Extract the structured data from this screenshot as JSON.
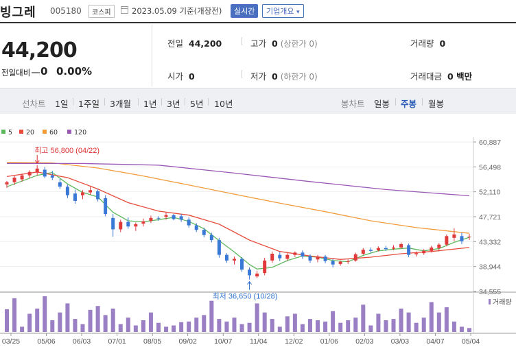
{
  "header": {
    "name": "빙그레",
    "code": "005180",
    "market": "코스피",
    "date": "2023.05.09 기준(개장전)",
    "live_btn": "실시간",
    "info_btn": "기업개요",
    "info_arrow": "▾"
  },
  "price": {
    "current": "44,200",
    "change_label": "전일대비",
    "change": "0",
    "change_pct": "0.00%"
  },
  "stats": {
    "prev_label": "전일",
    "prev": "44,200",
    "high_label": "고가",
    "high": "0",
    "high_limit": "(상한가 0)",
    "volume_label": "거래량",
    "volume": "0",
    "open_label": "시가",
    "open": "0",
    "low_label": "저가",
    "low": "0",
    "low_limit": "(하한가 0)",
    "amount_label": "거래대금",
    "amount": "0 백만"
  },
  "toolbar": {
    "line_label": "선차트",
    "periods": [
      "1일",
      "1주일",
      "3개월",
      "1년",
      "3년",
      "5년",
      "10년"
    ],
    "candle_label": "봉차트",
    "candle_types": [
      "일봉",
      "주봉",
      "월봉"
    ],
    "active_candle": "주봉"
  },
  "legend": [
    {
      "label": "5",
      "color": "#5cb85c"
    },
    {
      "label": "20",
      "color": "#e74c3c"
    },
    {
      "label": "60",
      "color": "#f39c3c"
    },
    {
      "label": "120",
      "color": "#9b59b6"
    }
  ],
  "colors": {
    "up": "#e03a3a",
    "down": "#3a78d6",
    "volume": "#9b7fc4"
  },
  "annotations": {
    "high": "최고 56,800 (04/22)",
    "low": "최저 36,650 (10/28)"
  },
  "volume_label": "거래량",
  "chart_data": {
    "type": "candlestick",
    "ylim": [
      34555,
      60887
    ],
    "y_ticks": [
      "60,887",
      "56,498",
      "52,110",
      "47,721",
      "43,332",
      "38,944",
      "34,555"
    ],
    "x_ticks": [
      "03/25",
      "05/06",
      "06/03",
      "07/01",
      "08/05",
      "09/02",
      "10/07",
      "11/04",
      "12/02",
      "01/06",
      "02/03",
      "03/03",
      "04/07",
      "05/04"
    ],
    "candles": [
      {
        "o": 53400,
        "h": 54000,
        "l": 52800,
        "c": 53800
      },
      {
        "o": 53800,
        "h": 54900,
        "l": 53300,
        "c": 54600
      },
      {
        "o": 54300,
        "h": 55300,
        "l": 53900,
        "c": 55000
      },
      {
        "o": 55000,
        "h": 55900,
        "l": 54500,
        "c": 55600
      },
      {
        "o": 55500,
        "h": 56800,
        "l": 55000,
        "c": 56200
      },
      {
        "o": 56000,
        "h": 56500,
        "l": 54500,
        "c": 54800
      },
      {
        "o": 55000,
        "h": 55800,
        "l": 54200,
        "c": 54600
      },
      {
        "o": 53800,
        "h": 54400,
        "l": 52600,
        "c": 53000
      },
      {
        "o": 53000,
        "h": 53400,
        "l": 51000,
        "c": 51500
      },
      {
        "o": 51800,
        "h": 52500,
        "l": 50000,
        "c": 50500
      },
      {
        "o": 51500,
        "h": 52400,
        "l": 50800,
        "c": 52000
      },
      {
        "o": 52000,
        "h": 53000,
        "l": 51600,
        "c": 52400
      },
      {
        "o": 52200,
        "h": 52600,
        "l": 50400,
        "c": 50800
      },
      {
        "o": 51000,
        "h": 51500,
        "l": 47800,
        "c": 48200
      },
      {
        "o": 47500,
        "h": 48200,
        "l": 44200,
        "c": 45500
      },
      {
        "o": 45500,
        "h": 47200,
        "l": 45000,
        "c": 46800
      },
      {
        "o": 46800,
        "h": 47600,
        "l": 45600,
        "c": 46000
      },
      {
        "o": 46000,
        "h": 46700,
        "l": 45200,
        "c": 46400
      },
      {
        "o": 46500,
        "h": 47400,
        "l": 46000,
        "c": 46900
      },
      {
        "o": 47000,
        "h": 47900,
        "l": 46600,
        "c": 47500
      },
      {
        "o": 47500,
        "h": 47800,
        "l": 47000,
        "c": 47400
      },
      {
        "o": 47700,
        "h": 48400,
        "l": 47200,
        "c": 48000
      },
      {
        "o": 48000,
        "h": 48200,
        "l": 47100,
        "c": 47300
      },
      {
        "o": 47800,
        "h": 48200,
        "l": 46800,
        "c": 47200
      },
      {
        "o": 47200,
        "h": 47600,
        "l": 45800,
        "c": 46200
      },
      {
        "o": 46200,
        "h": 46600,
        "l": 45000,
        "c": 45400
      },
      {
        "o": 45400,
        "h": 45800,
        "l": 44100,
        "c": 44500
      },
      {
        "o": 44500,
        "h": 44900,
        "l": 43200,
        "c": 43600
      },
      {
        "o": 43600,
        "h": 44000,
        "l": 40500,
        "c": 41000
      },
      {
        "o": 41000,
        "h": 41300,
        "l": 39600,
        "c": 40000
      },
      {
        "o": 40000,
        "h": 40700,
        "l": 39300,
        "c": 40300
      },
      {
        "o": 40300,
        "h": 40600,
        "l": 38000,
        "c": 38400
      },
      {
        "o": 38400,
        "h": 38800,
        "l": 36650,
        "c": 37400
      },
      {
        "o": 37200,
        "h": 38200,
        "l": 36900,
        "c": 37700
      },
      {
        "o": 37800,
        "h": 40500,
        "l": 37400,
        "c": 40000
      },
      {
        "o": 40000,
        "h": 41600,
        "l": 39600,
        "c": 41200
      },
      {
        "o": 41000,
        "h": 41500,
        "l": 39900,
        "c": 40400
      },
      {
        "o": 40300,
        "h": 41300,
        "l": 40000,
        "c": 41000
      },
      {
        "o": 41000,
        "h": 41600,
        "l": 40600,
        "c": 41400
      },
      {
        "o": 41400,
        "h": 41800,
        "l": 40300,
        "c": 40700
      },
      {
        "o": 40800,
        "h": 41100,
        "l": 39600,
        "c": 40000
      },
      {
        "o": 40200,
        "h": 41000,
        "l": 39700,
        "c": 40700
      },
      {
        "o": 40700,
        "h": 41000,
        "l": 39500,
        "c": 39900
      },
      {
        "o": 39900,
        "h": 40300,
        "l": 38800,
        "c": 39300
      },
      {
        "o": 39400,
        "h": 40000,
        "l": 39100,
        "c": 39800
      },
      {
        "o": 39800,
        "h": 40200,
        "l": 39400,
        "c": 39900
      },
      {
        "o": 40000,
        "h": 41400,
        "l": 39800,
        "c": 41100
      },
      {
        "o": 41200,
        "h": 42200,
        "l": 41000,
        "c": 41900
      },
      {
        "o": 41900,
        "h": 42300,
        "l": 41400,
        "c": 41700
      },
      {
        "o": 41800,
        "h": 42500,
        "l": 41600,
        "c": 42200
      },
      {
        "o": 42200,
        "h": 42600,
        "l": 41700,
        "c": 42000
      },
      {
        "o": 42100,
        "h": 42700,
        "l": 41800,
        "c": 42300
      },
      {
        "o": 42300,
        "h": 43200,
        "l": 42100,
        "c": 42900
      },
      {
        "o": 42700,
        "h": 43000,
        "l": 40600,
        "c": 41000
      },
      {
        "o": 41100,
        "h": 41600,
        "l": 40700,
        "c": 41300
      },
      {
        "o": 41300,
        "h": 42000,
        "l": 41000,
        "c": 41700
      },
      {
        "o": 41700,
        "h": 42600,
        "l": 41400,
        "c": 42300
      },
      {
        "o": 42200,
        "h": 43100,
        "l": 41600,
        "c": 42800
      },
      {
        "o": 42800,
        "h": 44600,
        "l": 42500,
        "c": 44300
      },
      {
        "o": 44000,
        "h": 45700,
        "l": 43400,
        "c": 44600
      },
      {
        "o": 44300,
        "h": 44900,
        "l": 42900,
        "c": 43400
      },
      {
        "o": 44200,
        "h": 44700,
        "l": 43600,
        "c": 44200
      }
    ],
    "ma": [
      {
        "name": "5",
        "points": [
          [
            0,
            53000
          ],
          [
            4,
            55000
          ],
          [
            6,
            55500
          ],
          [
            8,
            53500
          ],
          [
            10,
            52000
          ],
          [
            12,
            51200
          ],
          [
            14,
            48500
          ],
          [
            16,
            47000
          ],
          [
            18,
            46800
          ],
          [
            20,
            47200
          ],
          [
            22,
            47600
          ],
          [
            24,
            46900
          ],
          [
            26,
            45600
          ],
          [
            28,
            43500
          ],
          [
            30,
            41500
          ],
          [
            32,
            39300
          ],
          [
            33,
            38500
          ],
          [
            35,
            38800
          ],
          [
            37,
            40000
          ],
          [
            39,
            40800
          ],
          [
            41,
            40600
          ],
          [
            43,
            40000
          ],
          [
            45,
            39800
          ],
          [
            47,
            40900
          ],
          [
            49,
            41700
          ],
          [
            51,
            42000
          ],
          [
            53,
            42200
          ],
          [
            55,
            41700
          ],
          [
            57,
            42100
          ],
          [
            59,
            43200
          ],
          [
            61,
            44100
          ]
        ]
      },
      {
        "name": "20",
        "points": [
          [
            0,
            54800
          ],
          [
            4,
            55600
          ],
          [
            8,
            54600
          ],
          [
            12,
            52600
          ],
          [
            16,
            50200
          ],
          [
            20,
            48700
          ],
          [
            24,
            48000
          ],
          [
            28,
            46400
          ],
          [
            32,
            43600
          ],
          [
            36,
            41600
          ],
          [
            40,
            40800
          ],
          [
            44,
            40200
          ],
          [
            48,
            40600
          ],
          [
            52,
            41200
          ],
          [
            56,
            41600
          ],
          [
            61,
            42300
          ]
        ]
      },
      {
        "name": "60",
        "points": [
          [
            0,
            57300
          ],
          [
            6,
            57200
          ],
          [
            12,
            56300
          ],
          [
            18,
            54900
          ],
          [
            24,
            53300
          ],
          [
            30,
            51700
          ],
          [
            36,
            50100
          ],
          [
            42,
            48600
          ],
          [
            48,
            47000
          ],
          [
            54,
            45800
          ],
          [
            61,
            44800
          ]
        ]
      },
      {
        "name": "120",
        "points": [
          [
            0,
            57100
          ],
          [
            10,
            57100
          ],
          [
            20,
            56800
          ],
          [
            30,
            55400
          ],
          [
            40,
            53900
          ],
          [
            50,
            52500
          ],
          [
            61,
            51400
          ]
        ]
      }
    ],
    "volumes": [
      35,
      52,
      8,
      28,
      36,
      55,
      18,
      30,
      44,
      20,
      12,
      34,
      40,
      26,
      36,
      12,
      22,
      10,
      18,
      30,
      14,
      8,
      10,
      15,
      16,
      22,
      26,
      48,
      20,
      16,
      22,
      12,
      14,
      44,
      30,
      20,
      8,
      24,
      28,
      12,
      20,
      18,
      16,
      32,
      14,
      18,
      22,
      42,
      10,
      28,
      18,
      20,
      36,
      30,
      14,
      22,
      46,
      30,
      38,
      16,
      8,
      6
    ]
  }
}
